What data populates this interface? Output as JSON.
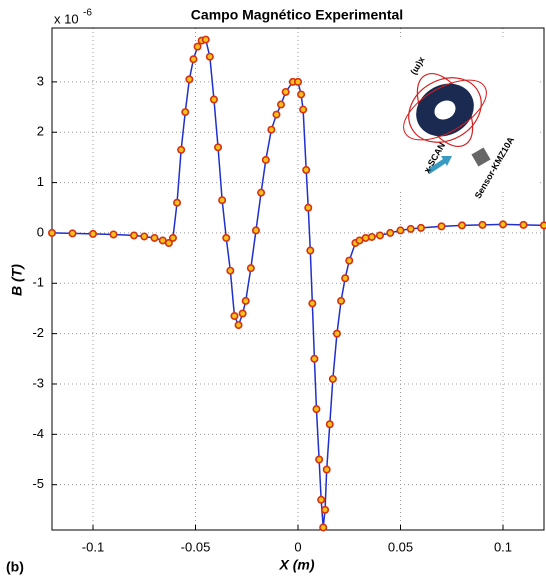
{
  "chart_data": {
    "type": "line",
    "title": "Campo Magnético Experimental",
    "x_label": "X (m)",
    "y_label": "B (T)",
    "y_multiplier": "x 10",
    "y_multiplier_exponent": "-6",
    "panel_label": "(b)",
    "annotations": [
      "x(m)",
      "x-SCAN",
      "Sensor-KMZ10A"
    ],
    "x": [
      -0.12,
      -0.11,
      -0.1,
      -0.09,
      -0.08,
      -0.075,
      -0.07,
      -0.066,
      -0.063,
      -0.061,
      -0.059,
      -0.057,
      -0.055,
      -0.053,
      -0.051,
      -0.049,
      -0.047,
      -0.045,
      -0.043,
      -0.041,
      -0.039,
      -0.037,
      -0.035,
      -0.033,
      -0.031,
      -0.029,
      -0.027,
      -0.0255,
      -0.023,
      -0.0205,
      -0.018,
      -0.0157,
      -0.013,
      -0.0105,
      -0.0083,
      -0.006,
      -0.0025,
      0,
      0.0015,
      0.0025,
      0.004,
      0.005,
      0.006,
      0.007,
      0.008,
      0.009,
      0.0103,
      0.0113,
      0.0123,
      0.0132,
      0.014,
      0.0155,
      0.017,
      0.019,
      0.021,
      0.023,
      0.025,
      0.028,
      0.03,
      0.033,
      0.036,
      0.04,
      0.045,
      0.05,
      0.055,
      0.06,
      0.07,
      0.08,
      0.09,
      0.1,
      0.11,
      0.12
    ],
    "values": [
      0,
      -0.01,
      -0.02,
      -0.03,
      -0.05,
      -0.07,
      -0.1,
      -0.15,
      -0.2,
      -0.1,
      0.6,
      1.65,
      2.4,
      3.05,
      3.45,
      3.7,
      3.82,
      3.84,
      3.5,
      2.65,
      1.7,
      0.65,
      -0.1,
      -0.75,
      -1.65,
      -1.83,
      -1.6,
      -1.35,
      -0.7,
      0.05,
      0.8,
      1.45,
      2.05,
      2.35,
      2.55,
      2.8,
      3.0,
      3.0,
      2.75,
      2.45,
      1.25,
      0.5,
      -0.35,
      -1.4,
      -2.5,
      -3.5,
      -4.5,
      -5.3,
      -5.85,
      -5.5,
      -4.7,
      -3.8,
      -2.9,
      -2.0,
      -1.35,
      -0.9,
      -0.55,
      -0.2,
      -0.15,
      -0.1,
      -0.08,
      -0.05,
      0,
      0.05,
      0.08,
      0.1,
      0.13,
      0.15,
      0.16,
      0.17,
      0.16,
      0.15
    ],
    "line_color": "#1f2fd0",
    "marker_face": "#f5c21c",
    "marker_edge": "#d8300f",
    "xlim": [
      -0.12,
      0.12
    ],
    "ylim": [
      -5.9,
      4.07
    ],
    "xticks": [
      -0.1,
      -0.05,
      0,
      0.05,
      0.1
    ],
    "yticks": [
      -5,
      -4,
      -3,
      -2,
      -1,
      0,
      1,
      2,
      3
    ],
    "grid": true
  }
}
